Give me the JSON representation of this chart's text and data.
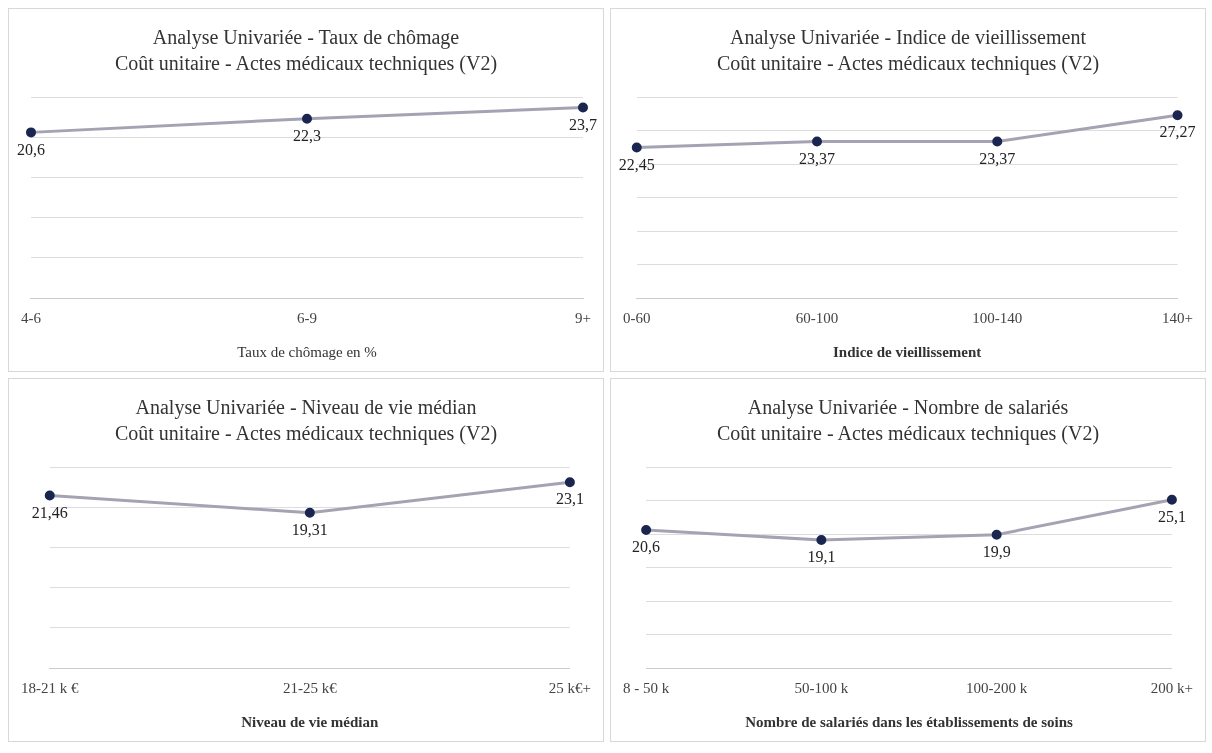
{
  "chart_data": [
    {
      "type": "line",
      "title": "Analyse Univariée - Taux de chômage",
      "subtitle": "Coût unitaire - Actes médicaux techniques (V2)",
      "xlabel": "Taux de chômage en %",
      "categories": [
        "4-6",
        "6-9",
        "9+"
      ],
      "series": [
        {
          "color": "#a3a3b3",
          "values": [
            20.6,
            22.3,
            23.7
          ],
          "value_labels": [
            "20,6",
            "22,3",
            "23,7"
          ]
        }
      ],
      "ylim": [
        0,
        25
      ],
      "yticks": [
        {
          "value": 0,
          "label": null
        },
        {
          "value": 5,
          "label": null
        },
        {
          "value": 10,
          "label": null
        },
        {
          "value": 15,
          "label": null
        },
        {
          "value": 20,
          "label": null
        },
        {
          "value": 25,
          "label": null
        }
      ],
      "tick_labels": "x",
      "grid": "y",
      "marker": "circle",
      "legend": false
    },
    {
      "type": "line",
      "title": "Analyse Univariée - Indice de vieillissement",
      "subtitle": "Coût unitaire - Actes médicaux techniques (V2)",
      "xlabel": "Indice de vieillissement",
      "categories": [
        "0-60",
        "60-100",
        "100-140",
        "140+"
      ],
      "series": [
        {
          "color": "#a3a3b3",
          "values": [
            22.45,
            23.37,
            23.37,
            27.27
          ],
          "value_labels": [
            "22,45",
            "23,37",
            "23,37",
            "27,27"
          ]
        }
      ],
      "ylim": [
        0,
        30
      ],
      "yticks": [
        {
          "value": 0,
          "label": null
        },
        {
          "value": 5,
          "label": null
        },
        {
          "value": 10,
          "label": null
        },
        {
          "value": 15,
          "label": null
        },
        {
          "value": 20,
          "label": null
        },
        {
          "value": 25,
          "label": null
        },
        {
          "value": 30,
          "label": null
        }
      ],
      "tick_labels": "x",
      "grid": "y",
      "marker": "circle",
      "legend": false
    },
    {
      "type": "line",
      "title": "Analyse Univariée - Niveau de vie médian",
      "subtitle": "Coût unitaire - Actes médicaux techniques (V2)",
      "xlabel": "Niveau de vie médian",
      "categories": [
        "18-21 k €",
        "21-25 k€",
        "25 k€+"
      ],
      "series": [
        {
          "color": "#a3a3b3",
          "values": [
            21.46,
            19.31,
            23.1
          ],
          "value_labels": [
            "21,46",
            "19,31",
            "23,1"
          ]
        }
      ],
      "ylim": [
        0,
        25
      ],
      "yticks": [
        {
          "value": 0,
          "label": null
        },
        {
          "value": 5,
          "label": null
        },
        {
          "value": 10,
          "label": null
        },
        {
          "value": 15,
          "label": null
        },
        {
          "value": 20,
          "label": null
        },
        {
          "value": 25,
          "label": null
        }
      ],
      "tick_labels": "x",
      "grid": "y",
      "marker": "circle",
      "legend": false
    },
    {
      "type": "line",
      "title": "Analyse Univariée - Nombre de salariés",
      "subtitle": "Coût unitaire - Actes médicaux techniques (V2)",
      "xlabel": "Nombre de salariés dans les établissements de soins",
      "categories": [
        "8 - 50 k",
        "50-100 k",
        "100-200 k",
        "200 k+"
      ],
      "series": [
        {
          "color": "#a3a3b3",
          "values": [
            20.6,
            19.1,
            19.9,
            25.1
          ],
          "value_labels": [
            "20,6",
            "19,1",
            "19,9",
            "25,1"
          ]
        }
      ],
      "ylim": [
        0,
        30
      ],
      "yticks": [
        {
          "value": 0,
          "label": null
        },
        {
          "value": 5,
          "label": null
        },
        {
          "value": 10,
          "label": null
        },
        {
          "value": 15,
          "label": null
        },
        {
          "value": 20,
          "label": null
        },
        {
          "value": 25,
          "label": null
        },
        {
          "value": 30,
          "label": null
        }
      ],
      "tick_labels": "x",
      "grid": "y",
      "marker": "circle",
      "legend": false
    }
  ]
}
